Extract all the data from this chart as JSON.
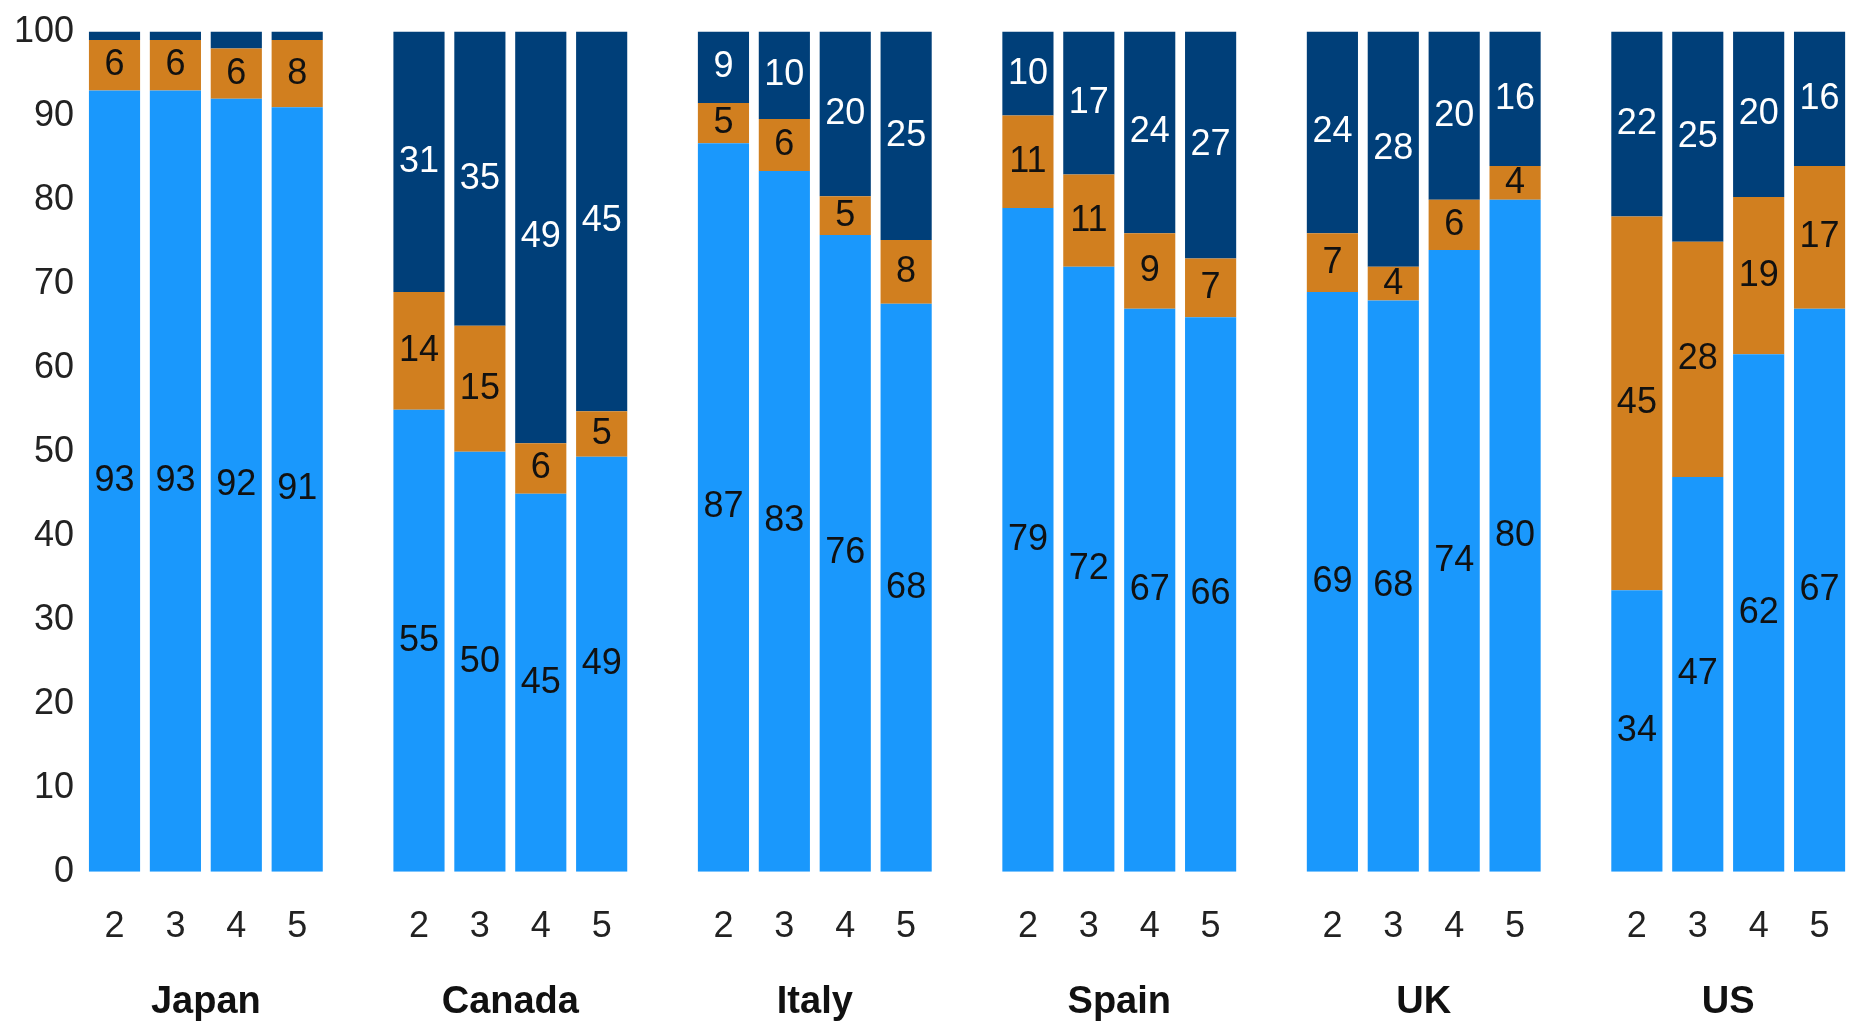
{
  "chart_data": {
    "type": "bar",
    "stacked": true,
    "categories": [
      "2",
      "3",
      "4",
      "5",
      null,
      "2",
      "3",
      "4",
      "5",
      null,
      "2",
      "3",
      "4",
      "5",
      null,
      "2",
      "3",
      "4",
      "5",
      null,
      "2",
      "3",
      "4",
      "5",
      null,
      "2",
      "3",
      "4",
      "5"
    ],
    "series": [
      {
        "color": "#1a98fc",
        "values": [
          93,
          93,
          92,
          91,
          null,
          55,
          50,
          45,
          49.4,
          null,
          86.7,
          83.4,
          75.8,
          67.6,
          null,
          79,
          72,
          67,
          66,
          null,
          69,
          68,
          74,
          80,
          null,
          33.5,
          47,
          61.6,
          67
        ],
        "value_labels": [
          "93",
          "93",
          "92",
          "91",
          null,
          "55",
          "50",
          "45",
          "49",
          null,
          "87",
          "83",
          "76",
          "68",
          null,
          "79",
          "72",
          "67",
          "66",
          null,
          "69",
          "68",
          "74",
          "80",
          null,
          "34",
          "47",
          "62",
          "67"
        ]
      },
      {
        "color": "#d17f1f",
        "values": [
          6,
          6,
          6,
          8,
          null,
          14,
          15,
          6,
          5.4,
          null,
          4.8,
          6.2,
          4.6,
          7.6,
          null,
          11,
          11,
          9,
          7,
          null,
          7,
          4,
          6,
          4,
          null,
          44.5,
          28,
          18.7,
          17
        ],
        "value_labels": [
          "6",
          "6",
          "6",
          "8",
          null,
          "14",
          "15",
          "6",
          "5",
          null,
          "5",
          "6",
          "5",
          "8",
          null,
          "11",
          "11",
          "9",
          "7",
          null,
          "7",
          "4",
          "6",
          "4",
          null,
          "45",
          "28",
          "19",
          "17"
        ]
      },
      {
        "color": "#003f79",
        "values": [
          1,
          1,
          2,
          1,
          null,
          31,
          35,
          49,
          45.2,
          null,
          8.5,
          10.4,
          19.6,
          24.8,
          null,
          10,
          17,
          24,
          27,
          null,
          24,
          28,
          20,
          16,
          null,
          22,
          25,
          19.7,
          16
        ],
        "value_labels": [
          null,
          null,
          null,
          null,
          null,
          "31",
          "35",
          "49",
          "45",
          null,
          "9",
          "10",
          "20",
          "25",
          null,
          "10",
          "17",
          "24",
          "27",
          null,
          "24",
          "28",
          "20",
          "16",
          null,
          "22",
          "25",
          "20",
          "16"
        ]
      }
    ],
    "ylim": [
      0,
      100
    ],
    "yticks": [
      0,
      10,
      20,
      30,
      40,
      50,
      60,
      70,
      80,
      90,
      100
    ],
    "annotations": [
      "Japan",
      "Canada",
      "Italy",
      "Spain",
      "UK",
      "US"
    ]
  }
}
